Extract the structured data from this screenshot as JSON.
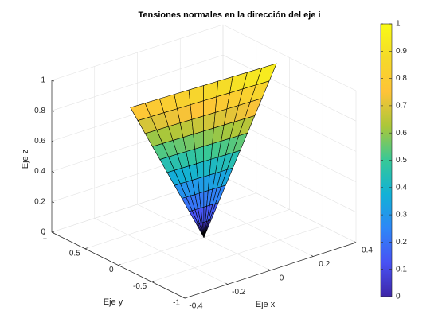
{
  "chart_data": {
    "type": "surface3d",
    "title": "Tensiones normales en la dirección del eje i",
    "xlabel": "Eje x",
    "ylabel": "Eje y",
    "zlabel": "Eje z",
    "xlim": [
      -0.4,
      0.4
    ],
    "ylim": [
      -1,
      1
    ],
    "zlim": [
      0,
      1
    ],
    "xticks": [
      -0.4,
      -0.2,
      0,
      0.2,
      0.4
    ],
    "yticks": [
      -1,
      -0.5,
      0,
      0.5,
      1
    ],
    "zticks": [
      0,
      0.2,
      0.4,
      0.6,
      0.8,
      1
    ],
    "grid": true,
    "colormap": "parula",
    "clim": [
      0,
      1
    ],
    "colorbar_ticks": [
      0,
      0.1,
      0.2,
      0.3,
      0.4,
      0.5,
      0.6,
      0.7,
      0.8,
      0.9,
      1
    ],
    "surface": {
      "apex": {
        "x": 0,
        "y": 0,
        "z": 0
      },
      "r": [
        0,
        0.1,
        0.2,
        0.3,
        0.4,
        0.5,
        0.6,
        0.7,
        0.8,
        0.9,
        1
      ],
      "edge": {
        "x": [
          -0.16,
          -0.111,
          -0.062,
          -0.013,
          0.036,
          0.085,
          0.134,
          0.183,
          0.232,
          0.281,
          0.33
        ],
        "y": [
          0.59,
          0.528,
          0.466,
          0.404,
          0.342,
          0.28,
          0.218,
          0.156,
          0.094,
          0.032,
          -0.03
        ],
        "z": [
          0.8,
          0.82,
          0.84,
          0.86,
          0.88,
          0.9,
          0.92,
          0.94,
          0.96,
          0.98,
          1
        ]
      }
    }
  }
}
